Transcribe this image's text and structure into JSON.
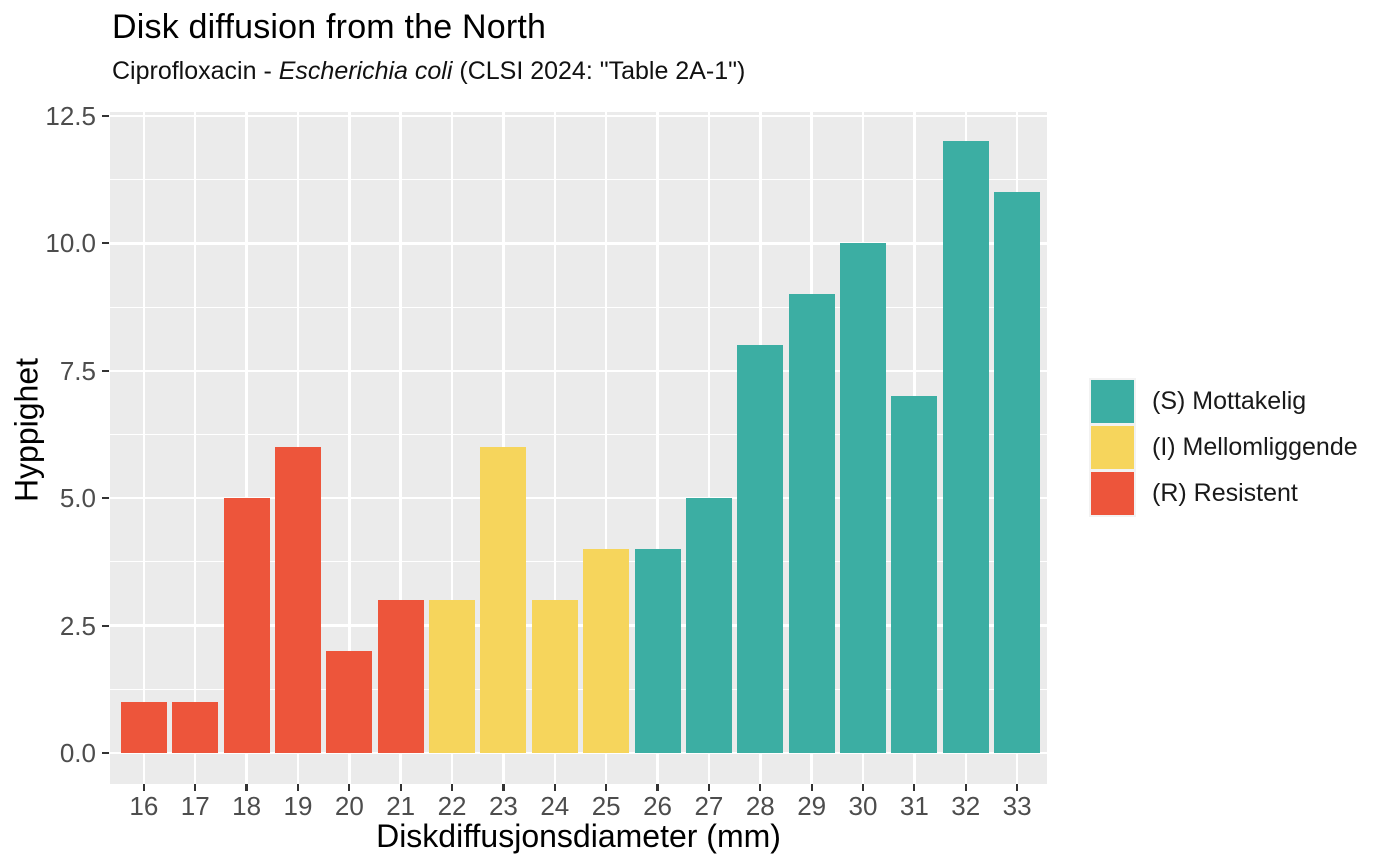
{
  "header": {
    "title": "Disk diffusion from the North",
    "subtitle_prefix": "Ciprofloxacin - ",
    "subtitle_italic": "Escherichia coli",
    "subtitle_suffix": " (CLSI 2024: \"Table 2A-1\")"
  },
  "chart_data": {
    "type": "bar",
    "title": "Disk diffusion from the North",
    "subtitle": "Ciprofloxacin - Escherichia coli (CLSI 2024: \"Table 2A-1\")",
    "xlabel": "Diskdiffusjonsdiameter (mm)",
    "ylabel": "Hyppighet",
    "categories": [
      16,
      17,
      18,
      19,
      20,
      21,
      22,
      23,
      24,
      25,
      26,
      27,
      28,
      29,
      30,
      31,
      32,
      33
    ],
    "values": [
      1,
      1,
      5,
      6,
      2,
      3,
      3,
      6,
      3,
      4,
      4,
      5,
      8,
      9,
      10,
      7,
      12,
      11
    ],
    "bar_groups": [
      "R",
      "R",
      "R",
      "R",
      "R",
      "R",
      "I",
      "I",
      "I",
      "I",
      "S",
      "S",
      "S",
      "S",
      "S",
      "S",
      "S",
      "S"
    ],
    "group_colors": {
      "S": "#3CAEA3",
      "I": "#F6D55C",
      "R": "#ED553B"
    },
    "y_ticks": [
      0.0,
      2.5,
      5.0,
      7.5,
      10.0,
      12.5
    ],
    "y_tick_labels": [
      "0.0",
      "2.5",
      "5.0",
      "7.5",
      "10.0",
      "12.5"
    ],
    "ylim": [
      -0.62,
      12.57
    ],
    "grid": {
      "horizontal": "major+minor",
      "vertical": "major-at-ticks"
    },
    "panel_bg": "#EBEBEB",
    "grid_color": "#FFFFFF",
    "legend_position": "right"
  },
  "legend": {
    "items": [
      {
        "label": "(S) Mottakelig",
        "color": "#3CAEA3",
        "icon": "swatch-susceptible"
      },
      {
        "label": "(I) Mellomliggende",
        "color": "#F6D55C",
        "icon": "swatch-intermediate"
      },
      {
        "label": "(R) Resistent",
        "color": "#ED553B",
        "icon": "swatch-resistant"
      }
    ]
  }
}
